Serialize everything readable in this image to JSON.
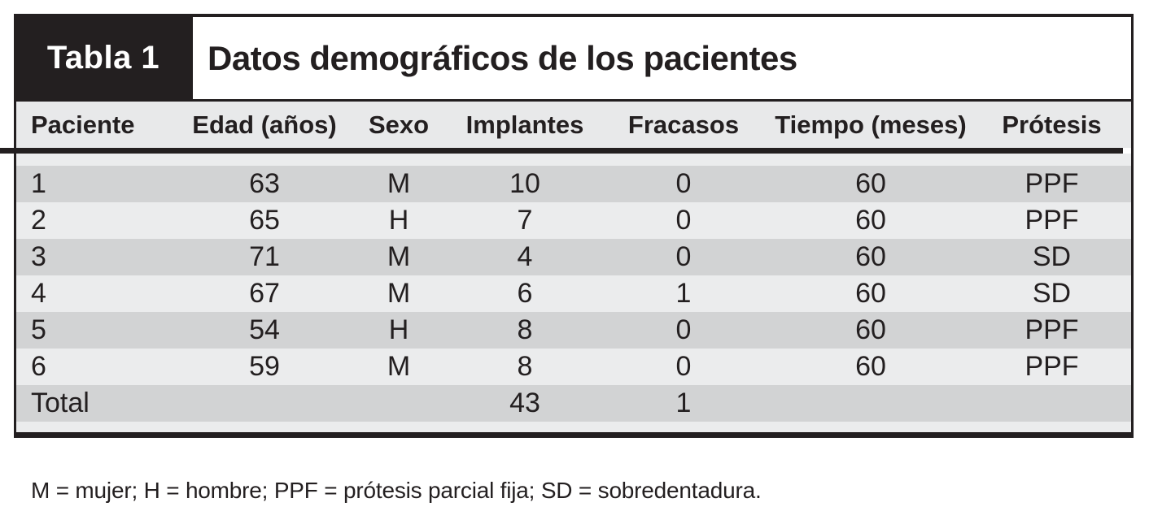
{
  "table": {
    "tag": "Tabla 1",
    "title": "Datos demográficos de los pacientes",
    "columns": [
      "Paciente",
      "Edad (años)",
      "Sexo",
      "Implantes",
      "Fracasos",
      "Tiempo (meses)",
      "Prótesis"
    ],
    "rows": [
      [
        "1",
        "63",
        "M",
        "10",
        "0",
        "60",
        "PPF"
      ],
      [
        "2",
        "65",
        "H",
        "7",
        "0",
        "60",
        "PPF"
      ],
      [
        "3",
        "71",
        "M",
        "4",
        "0",
        "60",
        "SD"
      ],
      [
        "4",
        "67",
        "M",
        "6",
        "1",
        "60",
        "SD"
      ],
      [
        "5",
        "54",
        "H",
        "8",
        "0",
        "60",
        "PPF"
      ],
      [
        "6",
        "59",
        "M",
        "8",
        "0",
        "60",
        "PPF"
      ]
    ],
    "total_row": [
      "Total",
      "",
      "",
      "43",
      "1",
      "",
      ""
    ],
    "footnote": "M = mujer; H = hombre; PPF = prótesis parcial fija; SD = sobredentadura."
  },
  "colors": {
    "ink": "#231f20",
    "header_bg": "#e8e9ea",
    "row_light": "#ebeced",
    "row_dark": "#d2d3d4",
    "tag_bg": "#231f20",
    "tag_text": "#ffffff"
  }
}
